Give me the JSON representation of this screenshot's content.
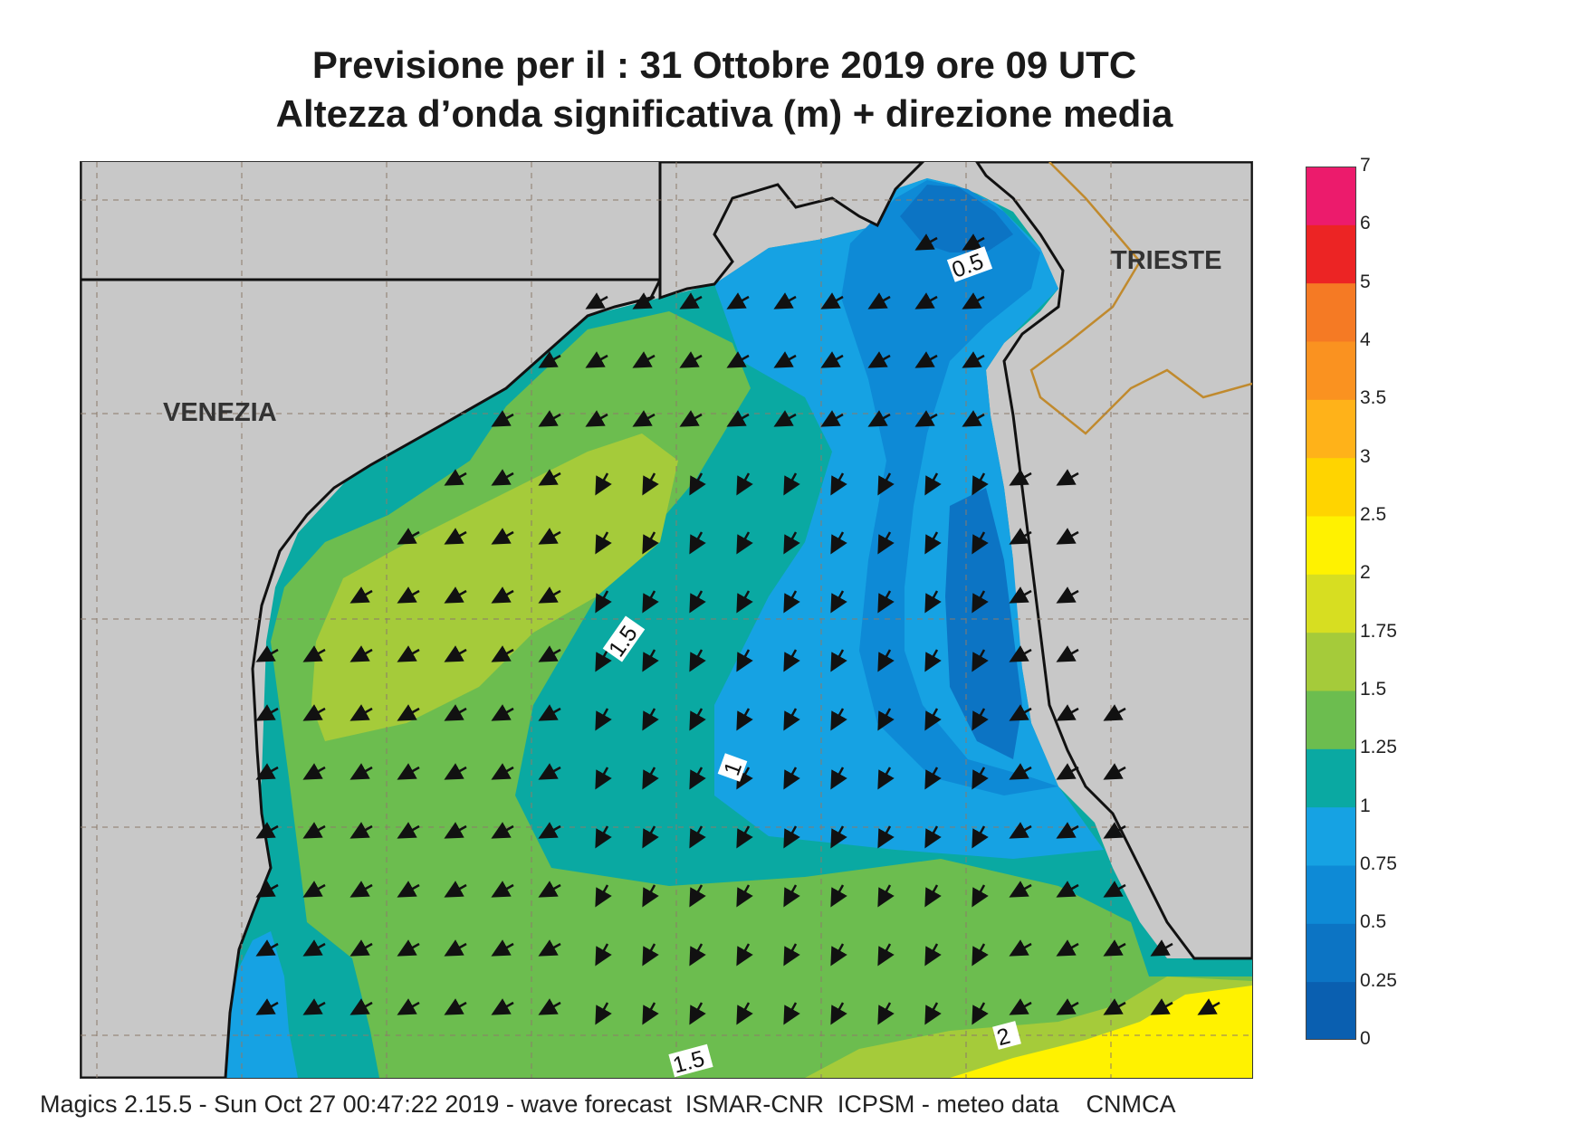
{
  "title": {
    "line1": "Previsione per il  :  31  Ottobre  2019   ore 09 UTC",
    "line2": "Altezza d’onda significativa (m) + direzione media"
  },
  "cities": {
    "venezia": "VENEZIA",
    "trieste": "TRIESTE"
  },
  "contour_labels": {
    "low": "0.5",
    "one": "1",
    "mid": "1.5",
    "bottom": "1.5",
    "two": "2"
  },
  "legend": {
    "levels": [
      "0",
      "0.25",
      "0.5",
      "0.75",
      "1",
      "1.25",
      "1.5",
      "1.75",
      "2",
      "2.5",
      "3",
      "3.5",
      "4",
      "5",
      "6",
      "7"
    ],
    "colors": [
      "#0a5fb0",
      "#0c74c4",
      "#0e8ad6",
      "#16a2e3",
      "#0aa9a2",
      "#6cbd4f",
      "#a5cb3a",
      "#d7de21",
      "#fff200",
      "#ffd400",
      "#ffb219",
      "#fa9220",
      "#f57a24",
      "#ec2424",
      "#ec1b6c"
    ]
  },
  "palette": {
    "land": "#c8c8c8",
    "border": "#c08a2e",
    "coast": "#111111",
    "grid": "#8c7a6a",
    "arrow": "#111111"
  },
  "footer": "Magics 2.15.5 - Sun Oct 27 00:47:22 2019 - wave forecast  ISMAR-CNR  ICPSM - meteo data    CNMCA"
}
